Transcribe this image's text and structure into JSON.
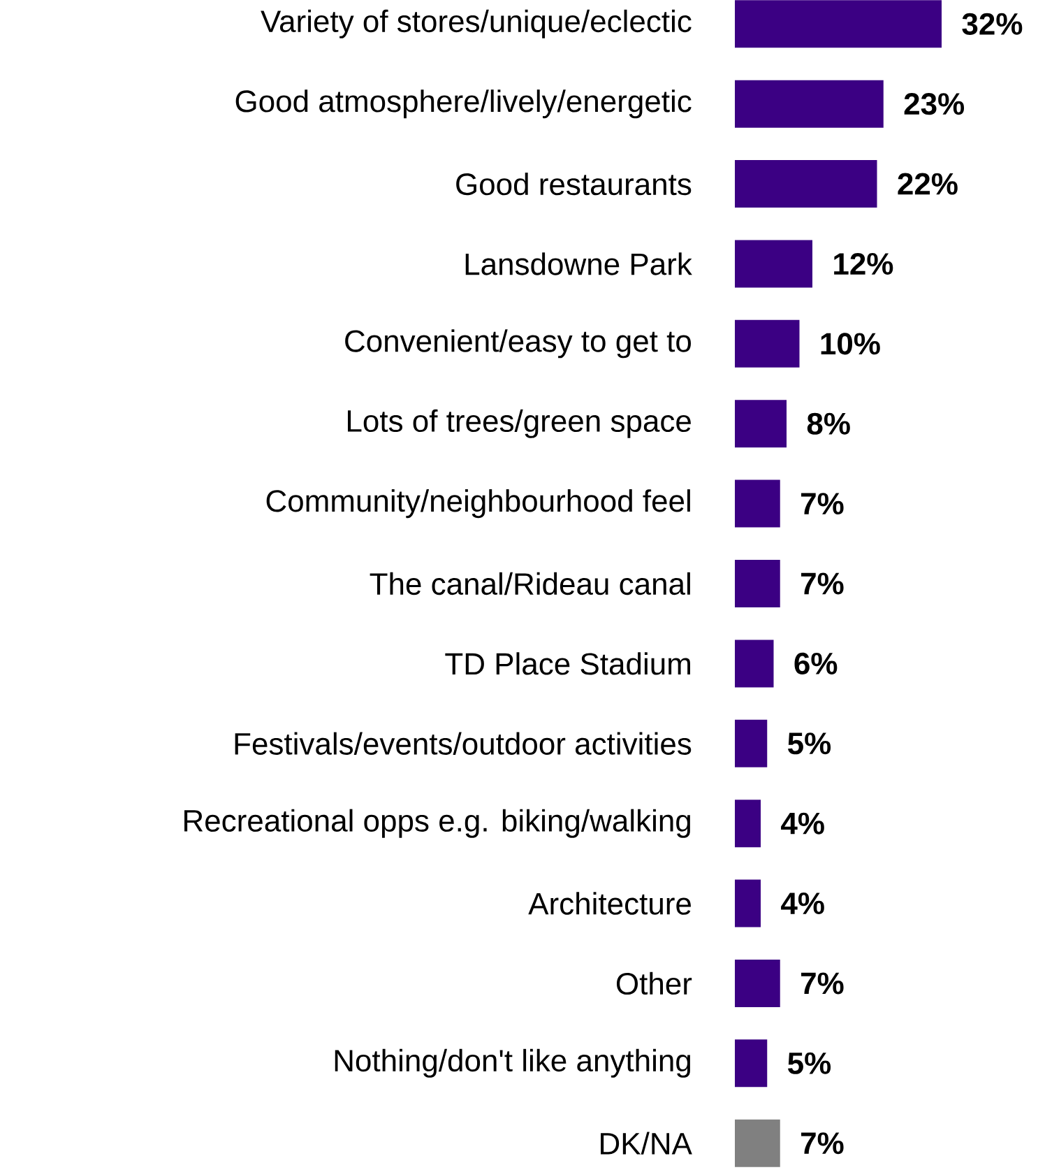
{
  "chart_data": {
    "type": "bar",
    "orientation": "horizontal",
    "categories": [
      "Variety of stores/unique/eclectic",
      "Good atmosphere/lively/energetic",
      "Good restaurants",
      "Lansdowne Park",
      "Convenient/easy to get to",
      "Lots of trees/green space",
      "Community/neighbourhood feel",
      "The canal/Rideau canal",
      "TD Place Stadium",
      "Festivals/events/outdoor activities",
      "Recreational opps e.g. biking/walking",
      "Architecture",
      "Other",
      "Nothing/don't like anything",
      "DK/NA"
    ],
    "values": [
      32,
      23,
      22,
      12,
      10,
      8,
      7,
      7,
      6,
      5,
      4,
      4,
      7,
      5,
      7
    ],
    "colors": [
      "#3b0083",
      "#3b0083",
      "#3b0083",
      "#3b0083",
      "#3b0083",
      "#3b0083",
      "#3b0083",
      "#3b0083",
      "#3b0083",
      "#3b0083",
      "#3b0083",
      "#3b0083",
      "#3b0083",
      "#3b0083",
      "#808080"
    ],
    "value_labels": [
      "32%",
      "23%",
      "22%",
      "12%",
      "10%",
      "8%",
      "7%",
      "7%",
      "6%",
      "5%",
      "4%",
      "4%",
      "7%",
      "5%",
      "7%"
    ]
  }
}
